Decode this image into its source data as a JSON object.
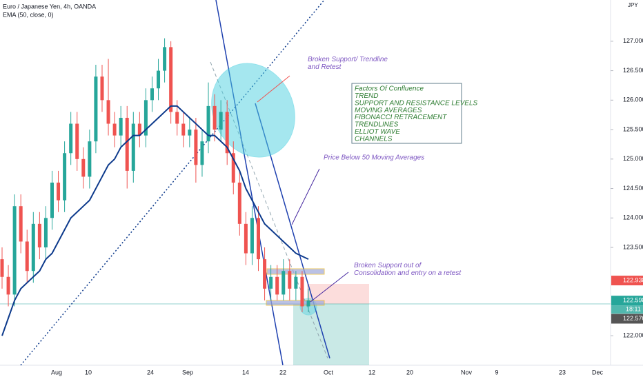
{
  "header": {
    "symbol": "Euro / Japanese Yen, 4h, OANDA",
    "indicator": "EMA (50, close, 0)",
    "currency": "JPY"
  },
  "price_axis": {
    "ticks": [
      {
        "value": 127,
        "label": "127.000"
      },
      {
        "value": 126.5,
        "label": "126.500"
      },
      {
        "value": 126,
        "label": "126.000"
      },
      {
        "value": 125.5,
        "label": "125.500"
      },
      {
        "value": 125,
        "label": "125.000"
      },
      {
        "value": 124.5,
        "label": "124.500"
      },
      {
        "value": 124,
        "label": "124.000"
      },
      {
        "value": 123.5,
        "label": "123.500"
      },
      {
        "value": 122,
        "label": "122.000"
      }
    ],
    "ylim": [
      121.5,
      127.7
    ],
    "badges": [
      {
        "value": 122.938,
        "label": "122.938",
        "color": "#ef5350"
      },
      {
        "value": 122.598,
        "label": "122.598",
        "color": "#26a69a"
      },
      {
        "value": 122.57,
        "label": "122.570",
        "color": "#555555"
      }
    ],
    "countdown": "18:11"
  },
  "time_axis": [
    "Aug",
    "10",
    "24",
    "Sep",
    "14",
    "22",
    "Oct",
    "12",
    "20",
    "Nov",
    "9",
    "23",
    "Dec"
  ],
  "annotations": [
    "Broken Support/ Trendline and Retest",
    "Price Below 50 Moving Averages",
    "Broken Support out of Consolidation and entry on a retest"
  ],
  "confluence": [
    "Factors Of Confluence",
    "TREND",
    "SUPPORT AND RESISTANCE LEVELS",
    "MOVING AVERAGES",
    "FIBONACCI RETRACEMENT",
    "TRENDLINES",
    "ELLIOT WAVE",
    "CHANNELS"
  ],
  "candles": [
    [
      123.3,
      123.5,
      122.8,
      123.0
    ],
    [
      123.0,
      123.2,
      122.5,
      122.7
    ],
    [
      122.7,
      124.4,
      122.5,
      124.2
    ],
    [
      124.2,
      124.4,
      123.4,
      123.6
    ],
    [
      123.6,
      123.8,
      122.9,
      123.1
    ],
    [
      123.1,
      124.1,
      122.9,
      123.9
    ],
    [
      123.9,
      124.1,
      123.3,
      123.5
    ],
    [
      123.5,
      124.2,
      123.3,
      124.0
    ],
    [
      124.0,
      124.8,
      123.8,
      124.6
    ],
    [
      124.6,
      124.8,
      124.1,
      124.3
    ],
    [
      124.3,
      125.3,
      124.1,
      125.1
    ],
    [
      125.1,
      125.8,
      124.9,
      125.6
    ],
    [
      125.6,
      125.8,
      124.8,
      125.0
    ],
    [
      125.0,
      125.2,
      124.5,
      124.7
    ],
    [
      124.7,
      125.5,
      124.5,
      125.3
    ],
    [
      125.3,
      126.6,
      125.1,
      126.4
    ],
    [
      126.4,
      126.6,
      125.8,
      126.0
    ],
    [
      126.0,
      126.7,
      125.4,
      125.6
    ],
    [
      125.6,
      125.8,
      125.2,
      125.4
    ],
    [
      125.4,
      125.9,
      125.2,
      125.7
    ],
    [
      125.7,
      125.9,
      124.5,
      124.8
    ],
    [
      124.8,
      125.8,
      124.6,
      125.6
    ],
    [
      125.6,
      125.8,
      125.2,
      125.4
    ],
    [
      125.4,
      126.2,
      125.2,
      126.0
    ],
    [
      126.0,
      126.4,
      125.8,
      126.2
    ],
    [
      126.2,
      126.7,
      126.0,
      126.5
    ],
    [
      126.5,
      127.05,
      126.3,
      126.9
    ],
    [
      126.9,
      127.0,
      125.6,
      125.8
    ],
    [
      125.8,
      126.0,
      125.4,
      125.6
    ],
    [
      125.6,
      125.8,
      125.2,
      125.4
    ],
    [
      125.4,
      125.7,
      125.2,
      125.5
    ],
    [
      125.5,
      125.7,
      124.6,
      124.9
    ],
    [
      124.9,
      125.5,
      124.7,
      125.3
    ],
    [
      125.3,
      126.3,
      125.1,
      125.9
    ],
    [
      125.9,
      126.1,
      125.3,
      125.5
    ],
    [
      125.5,
      126.0,
      125.3,
      125.8
    ],
    [
      125.8,
      126.0,
      124.9,
      125.1
    ],
    [
      125.1,
      125.3,
      124.4,
      124.6
    ],
    [
      124.6,
      124.8,
      123.7,
      123.9
    ],
    [
      123.9,
      124.1,
      123.2,
      123.4
    ],
    [
      123.4,
      124.2,
      123.2,
      124.0
    ],
    [
      124.0,
      124.2,
      123.1,
      123.3
    ],
    [
      123.3,
      123.5,
      122.6,
      122.8
    ],
    [
      122.8,
      123.2,
      122.6,
      123.0
    ],
    [
      123.0,
      123.2,
      122.6,
      122.7
    ],
    [
      122.7,
      123.3,
      122.6,
      123.1
    ],
    [
      123.1,
      123.3,
      122.6,
      122.8
    ],
    [
      122.8,
      123.1,
      122.6,
      123.0
    ],
    [
      123.0,
      123.1,
      122.4,
      122.5
    ],
    [
      122.5,
      122.8,
      122.4,
      122.6
    ]
  ],
  "ema": [
    122.0,
    122.3,
    122.6,
    122.8,
    122.9,
    123.0,
    123.1,
    123.3,
    123.4,
    123.6,
    123.8,
    124.0,
    124.1,
    124.2,
    124.3,
    124.5,
    124.7,
    124.9,
    125.0,
    125.2,
    125.3,
    125.4,
    125.4,
    125.5,
    125.6,
    125.7,
    125.8,
    125.9,
    125.9,
    125.8,
    125.7,
    125.6,
    125.5,
    125.4,
    125.4,
    125.3,
    125.2,
    125.0,
    124.8,
    124.5,
    124.3,
    124.1,
    123.9,
    123.8,
    123.7,
    123.6,
    123.5,
    123.4,
    123.35,
    123.3
  ],
  "colors": {
    "up": "#26a69a",
    "down": "#ef5350",
    "ema": "#0d3a8c"
  }
}
